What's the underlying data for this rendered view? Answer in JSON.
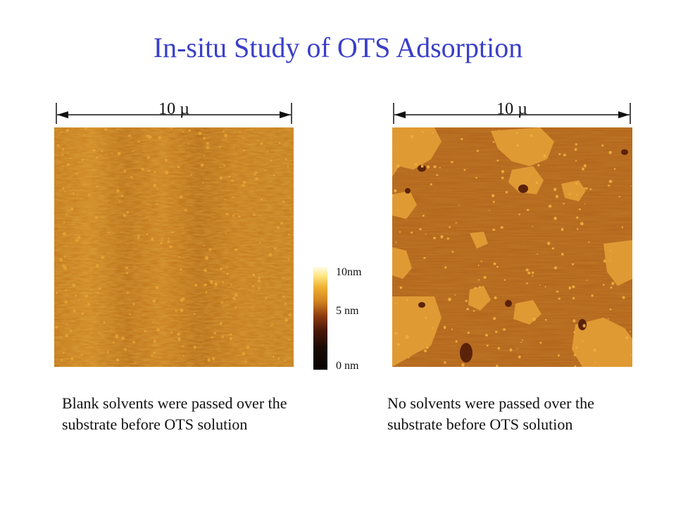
{
  "slide": {
    "title": "In-situ Study of OTS Adsorption"
  },
  "left_panel": {
    "scale_label": "10 µ",
    "caption": "Blank solvents were passed over the substrate before OTS solution"
  },
  "right_panel": {
    "scale_label": "10 µ",
    "caption": "No solvents were passed over the substrate before OTS solution"
  },
  "color_scale": {
    "top_label": "10nm",
    "mid_label": "5 nm",
    "bottom_label": "0 nm"
  }
}
